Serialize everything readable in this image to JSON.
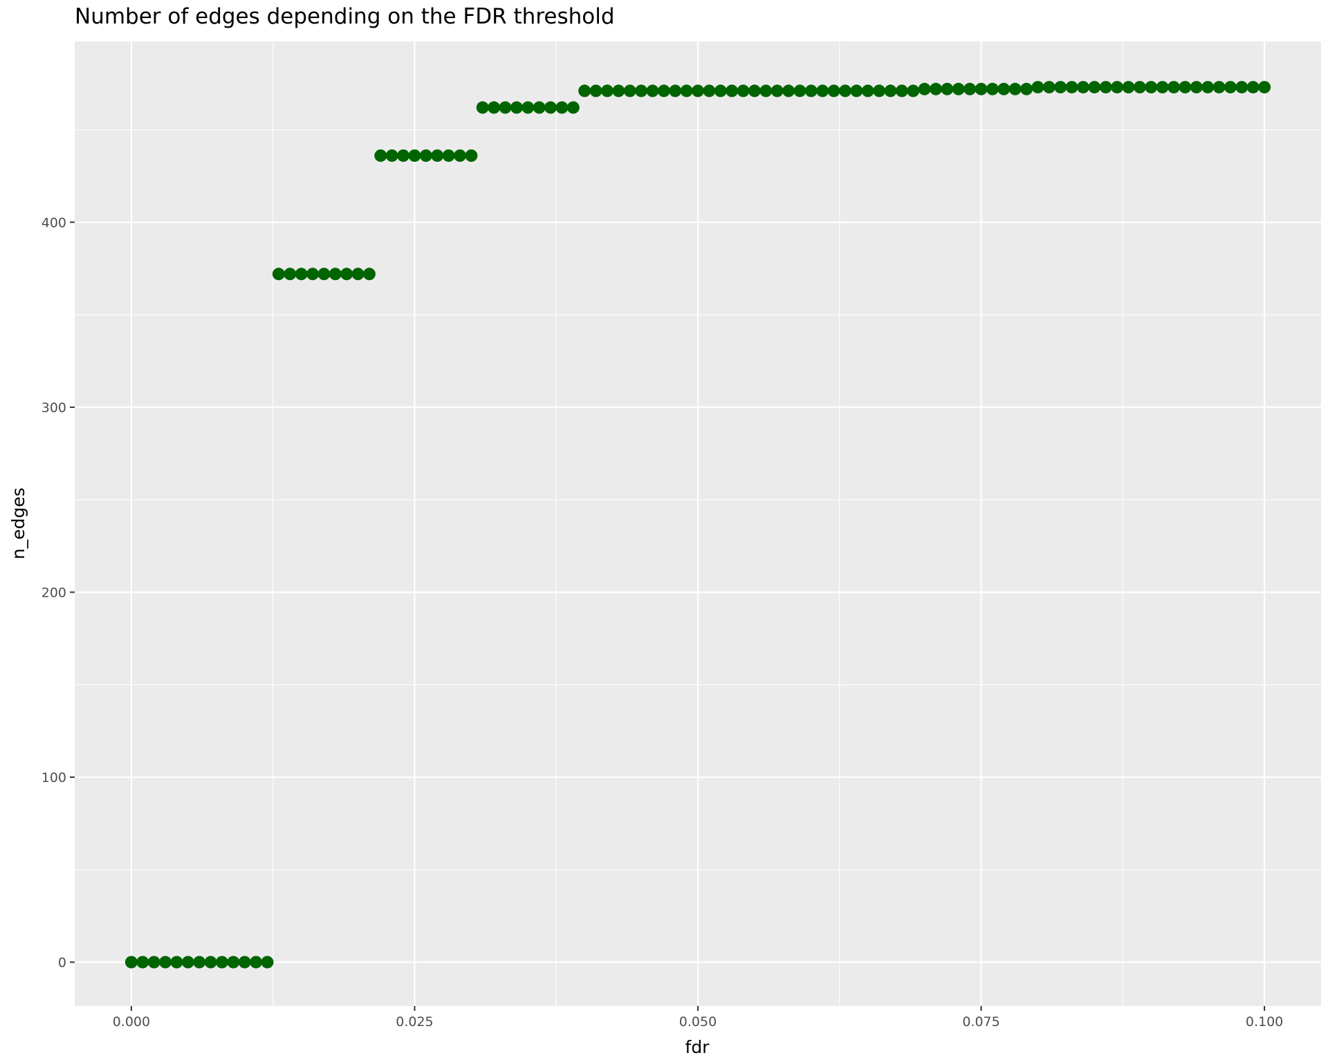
{
  "chart_data": {
    "type": "scatter",
    "title": "Number of edges depending on the FDR threshold",
    "xlabel": "fdr",
    "ylabel": "n_edges",
    "xlim": [
      -0.005,
      0.105
    ],
    "ylim": [
      -23.7,
      497.7
    ],
    "x_ticks": [
      0.0,
      0.025,
      0.05,
      0.075,
      0.1
    ],
    "x_tick_labels": [
      "0.000",
      "0.025",
      "0.050",
      "0.075",
      "0.100"
    ],
    "y_ticks": [
      0,
      100,
      200,
      300,
      400
    ],
    "y_tick_labels": [
      "0",
      "100",
      "200",
      "300",
      "400"
    ],
    "grid": true,
    "point_color": "#006400",
    "panel_color": "#ebebeb",
    "x": [
      0.0,
      0.001,
      0.002,
      0.003,
      0.004,
      0.005,
      0.006,
      0.007,
      0.008,
      0.009,
      0.01,
      0.011,
      0.012,
      0.013,
      0.014,
      0.015,
      0.016,
      0.017,
      0.018,
      0.019,
      0.02,
      0.021,
      0.022,
      0.023,
      0.024,
      0.025,
      0.026,
      0.027,
      0.028,
      0.029,
      0.03,
      0.031,
      0.032,
      0.033,
      0.034,
      0.035,
      0.036,
      0.037,
      0.038,
      0.039,
      0.04,
      0.041,
      0.042,
      0.043,
      0.044,
      0.045,
      0.046,
      0.047,
      0.048,
      0.049,
      0.05,
      0.051,
      0.052,
      0.053,
      0.054,
      0.055,
      0.056,
      0.057,
      0.058,
      0.059,
      0.06,
      0.061,
      0.062,
      0.063,
      0.064,
      0.065,
      0.066,
      0.067,
      0.068,
      0.069,
      0.07,
      0.071,
      0.072,
      0.073,
      0.074,
      0.075,
      0.076,
      0.077,
      0.078,
      0.079,
      0.08,
      0.081,
      0.082,
      0.083,
      0.084,
      0.085,
      0.086,
      0.087,
      0.088,
      0.089,
      0.09,
      0.091,
      0.092,
      0.093,
      0.094,
      0.095,
      0.096,
      0.097,
      0.098,
      0.099,
      0.1
    ],
    "y": [
      0,
      0,
      0,
      0,
      0,
      0,
      0,
      0,
      0,
      0,
      0,
      0,
      0,
      372,
      372,
      372,
      372,
      372,
      372,
      372,
      372,
      372,
      436,
      436,
      436,
      436,
      436,
      436,
      436,
      436,
      436,
      462,
      462,
      462,
      462,
      462,
      462,
      462,
      462,
      462,
      471,
      471,
      471,
      471,
      471,
      471,
      471,
      471,
      471,
      471,
      471,
      471,
      471,
      471,
      471,
      471,
      471,
      471,
      471,
      471,
      471,
      471,
      471,
      471,
      471,
      471,
      471,
      471,
      471,
      471,
      472,
      472,
      472,
      472,
      472,
      472,
      472,
      472,
      472,
      472,
      473,
      473,
      473,
      473,
      473,
      473,
      473,
      473,
      473,
      473,
      473,
      473,
      473,
      473,
      473,
      473,
      473,
      473,
      473,
      473,
      473
    ]
  }
}
